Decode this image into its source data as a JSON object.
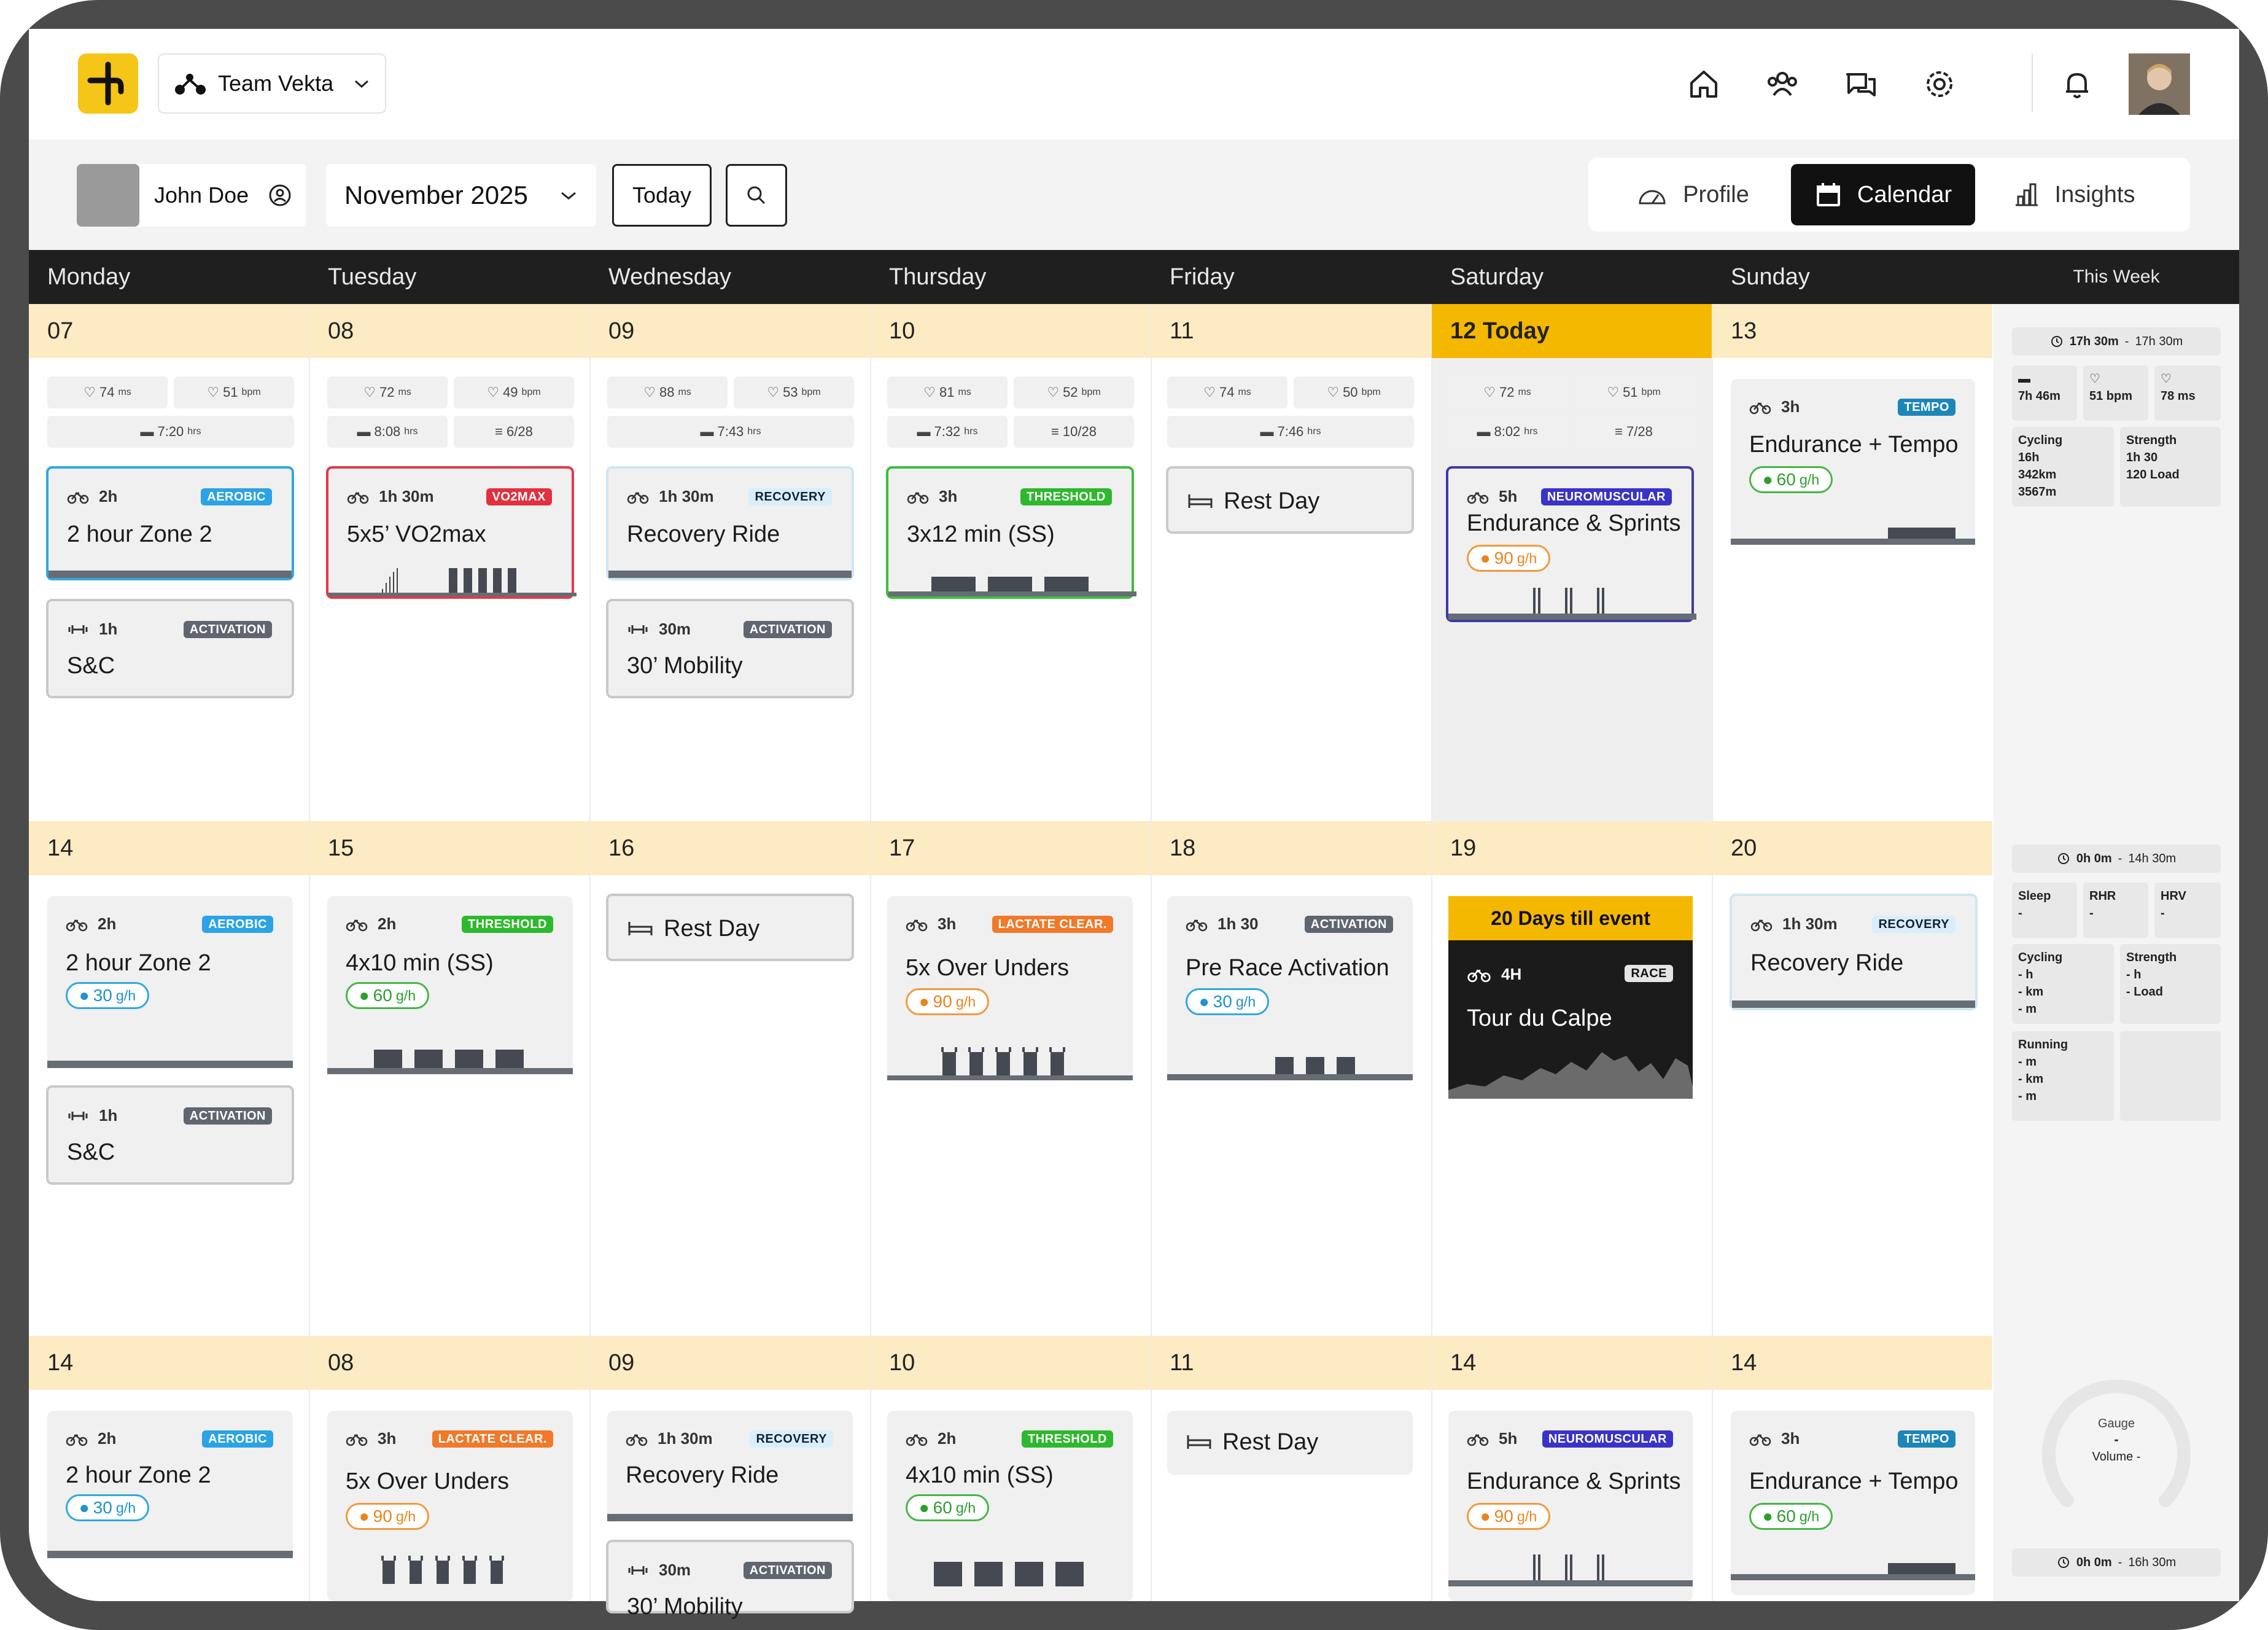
{
  "app": {
    "team": "Team Vekta",
    "colors": {
      "brand": "#f5c518",
      "dark": "#1f1f1f",
      "today": "#f5b800",
      "daycell": "#fdebc4"
    }
  },
  "toolbar": {
    "athlete": "John Doe",
    "month": "November 2025",
    "today": "Today",
    "tabs": [
      "Profile",
      "Calendar",
      "Insights"
    ]
  },
  "days": [
    "Monday",
    "Tuesday",
    "Wednesday",
    "Thursday",
    "Friday",
    "Saturday",
    "Sunday"
  ],
  "this_week": "This Week",
  "weeks": [
    {
      "dates": [
        "07",
        "08",
        "09",
        "10",
        "11",
        "12 Today",
        "13"
      ]
    },
    {
      "dates": [
        "14",
        "15",
        "16",
        "17",
        "18",
        "19",
        "20"
      ]
    },
    {
      "dates": [
        "14",
        "08",
        "09",
        "10",
        "11",
        "14",
        "14"
      ]
    }
  ],
  "stats": [
    {
      "hrv": "74",
      "rhr": "51",
      "sleep": "7:20",
      "comp": ""
    },
    {
      "hrv": "72",
      "rhr": "49",
      "sleep": "8:08",
      "comp": "6/28"
    },
    {
      "hrv": "88",
      "rhr": "53",
      "sleep": "7:43",
      "comp": ""
    },
    {
      "hrv": "81",
      "rhr": "52",
      "sleep": "7:32",
      "comp": "10/28"
    },
    {
      "hrv": "74",
      "rhr": "50",
      "sleep": "7:46",
      "comp": ""
    },
    {
      "hrv": "72",
      "rhr": "51",
      "sleep": "8:02",
      "comp": "7/28"
    }
  ],
  "units": {
    "ms": "ms",
    "bpm": "bpm",
    "hrs": "hrs",
    "gh": "g/h"
  },
  "cards": {
    "w1": [
      {
        "dur": "2h",
        "badge": "AEROBIC",
        "title": "2 hour Zone 2"
      },
      {
        "dur": "1h",
        "badge": "ACTIVATION",
        "title": "S&C"
      },
      {
        "dur": "1h 30m",
        "badge": "VO2MAX",
        "title": "5x5’ VO2max"
      },
      {
        "dur": "1h 30m",
        "badge": "RECOVERY",
        "title": "Recovery Ride"
      },
      {
        "dur": "30m",
        "badge": "ACTIVATION",
        "title": "30’ Mobility"
      },
      {
        "dur": "3h",
        "badge": "THRESHOLD",
        "title": "3x12 min (SS)"
      },
      {
        "title": "Rest Day"
      },
      {
        "dur": "5h",
        "badge": "NEUROMUSCULAR",
        "title": "Endurance & Sprints",
        "carb": "90"
      },
      {
        "dur": "3h",
        "badge": "TEMPO",
        "title": "Endurance + Tempo",
        "carb": "60"
      }
    ],
    "w2": [
      {
        "dur": "2h",
        "badge": "AEROBIC",
        "title": "2 hour Zone 2",
        "carb": "30"
      },
      {
        "dur": "1h",
        "badge": "ACTIVATION",
        "title": "S&C"
      },
      {
        "dur": "2h",
        "badge": "THRESHOLD",
        "title": "4x10 min (SS)",
        "carb": "60"
      },
      {
        "title": "Rest Day"
      },
      {
        "dur": "3h",
        "badge": "LACTATE CLEAR.",
        "title": "5x Over Unders",
        "carb": "90"
      },
      {
        "dur": "1h 30",
        "badge": "ACTIVATION",
        "title": "Pre Race Activation",
        "carb": "30"
      },
      {
        "banner": "20 Days till event",
        "dur": "4H",
        "badge": "RACE",
        "title": "Tour du Calpe"
      },
      {
        "dur": "1h 30m",
        "badge": "RECOVERY",
        "title": "Recovery Ride"
      }
    ],
    "w3": [
      {
        "dur": "2h",
        "badge": "AEROBIC",
        "title": "2 hour Zone 2",
        "carb": "30"
      },
      {
        "dur": "3h",
        "badge": "LACTATE CLEAR.",
        "title": "5x Over Unders",
        "carb": "90"
      },
      {
        "dur": "1h 30m",
        "badge": "RECOVERY",
        "title": "Recovery Ride"
      },
      {
        "dur": "30m",
        "badge": "ACTIVATION",
        "title": "30’ Mobility"
      },
      {
        "dur": "2h",
        "badge": "THRESHOLD",
        "title": "4x10 min (SS)",
        "carb": "60"
      },
      {
        "title": "Rest Day"
      },
      {
        "dur": "5h",
        "badge": "NEUROMUSCULAR",
        "title": "Endurance & Sprints",
        "carb": "90"
      },
      {
        "dur": "3h",
        "badge": "TEMPO",
        "title": "Endurance + Tempo",
        "carb": "60"
      }
    ]
  },
  "week_summary": [
    {
      "total": "17h 30m",
      "planned": "17h 30m",
      "sleep": "7h 46m",
      "rhr": "51 bpm",
      "hrv": "78 ms",
      "cycling": {
        "label": "Cycling",
        "h": "16h",
        "km": "342km",
        "m": "3567m"
      },
      "strength": {
        "label": "Strength",
        "h": "1h 30",
        "load": "120 Load"
      }
    },
    {
      "total": "0h 0m",
      "planned": "14h 30m",
      "sleep": "Sleep",
      "rhr": "RHR",
      "hrv": "HRV",
      "dash": "-",
      "cycling": {
        "label": "Cycling",
        "h": "- h",
        "km": "- km",
        "m": "- m"
      },
      "strength": {
        "label": "Strength",
        "h": "- h",
        "load": "- Load"
      },
      "running": {
        "label": "Running",
        "mm": "- m",
        "km": "- km",
        "m": "- m"
      }
    },
    {
      "total": "0h 0m",
      "planned": "16h 30m",
      "gauge": "Gauge",
      "gauge_val": "-",
      "volume": "Volume -"
    }
  ]
}
